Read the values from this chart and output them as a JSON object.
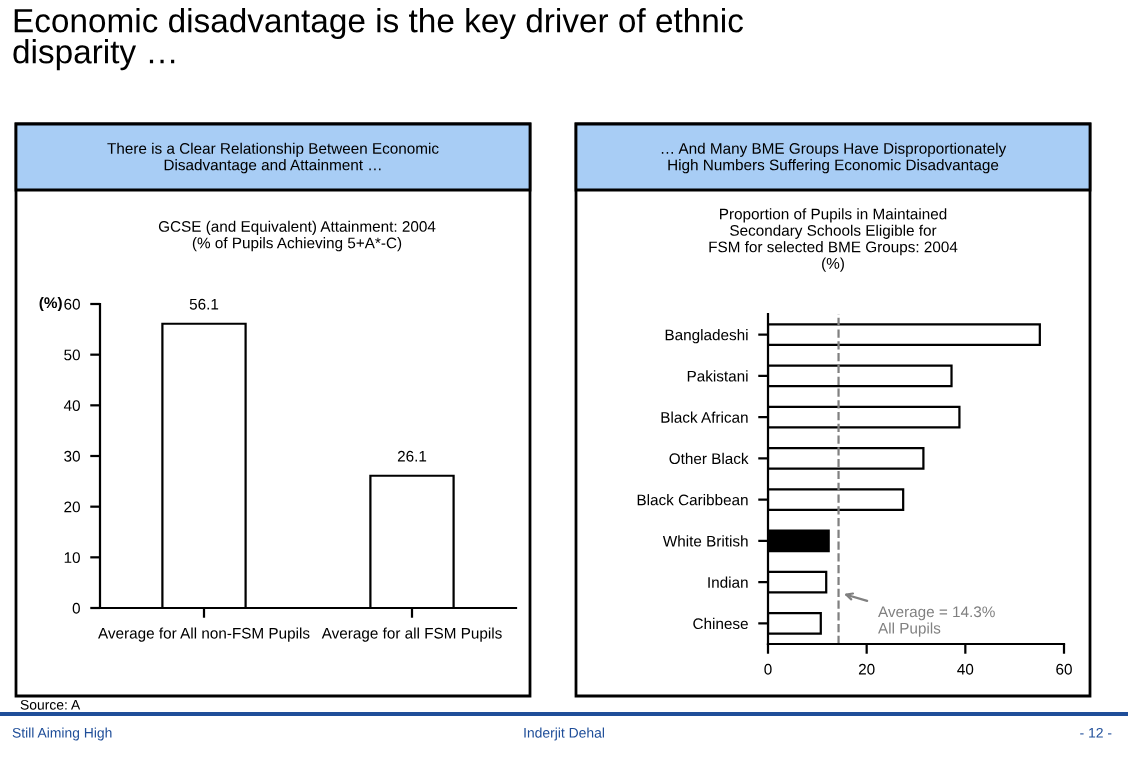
{
  "chart_data": [
    {
      "type": "bar",
      "title": "There is a Clear Relationship Between Economic\nDisadvantage and Attainment …",
      "subtitle": "GCSE (and Equivalent) Attainment: 2004\n(% of Pupils Achieving 5+A*-C)",
      "ylabel": "(%)",
      "categories": [
        "Average for All non-FSM Pupils",
        "Average for all FSM Pupils"
      ],
      "values": [
        56.1,
        26.1
      ],
      "color": "#ffffff",
      "data_labels": true,
      "ylim": [
        0,
        60
      ],
      "yticks": [
        0,
        10,
        20,
        30,
        40,
        50,
        60
      ],
      "annotations": [
        "Economic disadvantage is the key driver of ethnic\ndisparity …",
        "Source: A",
        "Still Aiming High",
        "Inderjit Dehal",
        "- 12 -"
      ]
    },
    {
      "type": "bar",
      "orientation": "horizontal",
      "title": "… And Many BME Groups Have Disproportionately\nHigh Numbers Suffering Economic Disadvantage",
      "subtitle": "Proportion of Pupils in Maintained\nSecondary Schools Eligible for\nFSM for selected BME Groups: 2004\n(%)",
      "categories": [
        "Bangladeshi",
        "Pakistani",
        "Black African",
        "Other Black",
        "Black Caribbean",
        "White British",
        "Indian",
        "Chinese"
      ],
      "values": [
        55.1,
        37.2,
        38.8,
        31.5,
        27.4,
        12.3,
        11.8,
        10.7
      ],
      "colors": [
        "#ffffff",
        "#ffffff",
        "#ffffff",
        "#ffffff",
        "#ffffff",
        "#000000",
        "#ffffff",
        "#ffffff"
      ],
      "xlim": [
        0,
        60
      ],
      "xticks": [
        0,
        20,
        40,
        60
      ],
      "ref_lines": [
        {
          "axis": "x",
          "value": 14.3,
          "label": "Average = 14.3%\nAll Pupils",
          "color": "#808080",
          "line_style": "dashed"
        }
      ]
    }
  ]
}
